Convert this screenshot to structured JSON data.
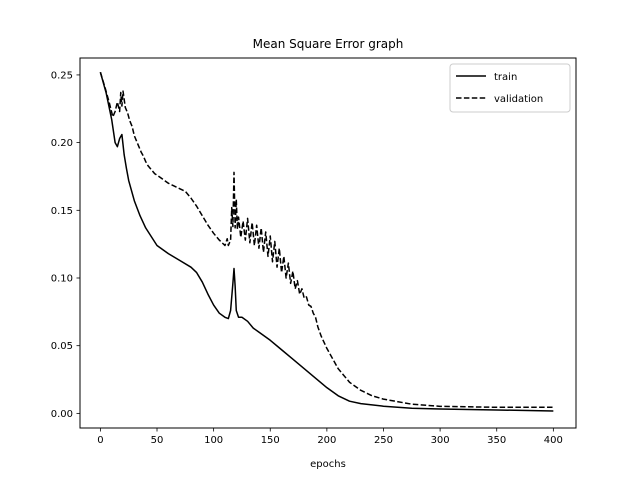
{
  "chart_data": {
    "type": "line",
    "title": "Mean Square Error graph",
    "xlabel": "epochs",
    "ylabel": "",
    "xlim": [
      -18,
      420
    ],
    "ylim": [
      -0.0108,
      0.2625
    ],
    "xticks": [
      0,
      50,
      100,
      150,
      200,
      250,
      300,
      350,
      400
    ],
    "xtick_labels": [
      "0",
      "50",
      "100",
      "150",
      "200",
      "250",
      "300",
      "350",
      "400"
    ],
    "yticks": [
      0.0,
      0.05,
      0.1,
      0.15,
      0.2,
      0.25
    ],
    "ytick_labels": [
      "0.00",
      "0.05",
      "0.10",
      "0.15",
      "0.20",
      "0.25"
    ],
    "grid": false,
    "legend": {
      "position": "top-right",
      "entries": [
        "train",
        "validation"
      ]
    },
    "series": [
      {
        "name": "train",
        "style": "solid",
        "color": "#000000",
        "x": [
          0,
          5,
          10,
          13,
          15,
          17,
          19,
          21,
          23,
          25,
          30,
          35,
          40,
          50,
          60,
          70,
          80,
          85,
          90,
          95,
          100,
          105,
          110,
          113,
          115,
          117,
          118,
          119,
          120,
          122,
          125,
          130,
          135,
          140,
          150,
          160,
          170,
          180,
          190,
          200,
          210,
          220,
          230,
          250,
          275,
          300,
          350,
          400
        ],
        "y": [
          0.252,
          0.237,
          0.217,
          0.2,
          0.197,
          0.203,
          0.206,
          0.191,
          0.181,
          0.172,
          0.157,
          0.146,
          0.137,
          0.124,
          0.118,
          0.113,
          0.108,
          0.104,
          0.097,
          0.088,
          0.08,
          0.074,
          0.071,
          0.07,
          0.076,
          0.096,
          0.107,
          0.094,
          0.076,
          0.071,
          0.071,
          0.068,
          0.063,
          0.06,
          0.054,
          0.047,
          0.04,
          0.033,
          0.026,
          0.019,
          0.013,
          0.009,
          0.0072,
          0.0053,
          0.0038,
          0.0032,
          0.0025,
          0.0018
        ]
      },
      {
        "name": "validation",
        "style": "dashed",
        "color": "#000000",
        "x": [
          0,
          4,
          8,
          11,
          13,
          15,
          17,
          18,
          19,
          20,
          22,
          24,
          26,
          28,
          30,
          32,
          34,
          36,
          38,
          40,
          42,
          44,
          46,
          48,
          50,
          55,
          60,
          65,
          70,
          75,
          80,
          85,
          90,
          95,
          100,
          105,
          110,
          112,
          113,
          114,
          115,
          116,
          117,
          118,
          119,
          120,
          121,
          122,
          124,
          126,
          128,
          130,
          132,
          134,
          136,
          138,
          140,
          142,
          144,
          146,
          148,
          150,
          152,
          154,
          156,
          158,
          160,
          162,
          164,
          166,
          168,
          170,
          172,
          174,
          176,
          178,
          180,
          182,
          184,
          186,
          188,
          190,
          192,
          195,
          200,
          210,
          220,
          230,
          240,
          250,
          275,
          300,
          350,
          400
        ],
        "y": [
          0.252,
          0.241,
          0.229,
          0.219,
          0.223,
          0.23,
          0.223,
          0.237,
          0.227,
          0.238,
          0.226,
          0.222,
          0.216,
          0.212,
          0.205,
          0.201,
          0.197,
          0.193,
          0.19,
          0.186,
          0.183,
          0.181,
          0.179,
          0.177,
          0.176,
          0.173,
          0.17,
          0.168,
          0.166,
          0.164,
          0.159,
          0.153,
          0.146,
          0.139,
          0.133,
          0.128,
          0.124,
          0.129,
          0.124,
          0.126,
          0.128,
          0.152,
          0.138,
          0.178,
          0.137,
          0.158,
          0.136,
          0.145,
          0.13,
          0.142,
          0.128,
          0.144,
          0.126,
          0.141,
          0.124,
          0.139,
          0.122,
          0.137,
          0.119,
          0.134,
          0.116,
          0.131,
          0.112,
          0.127,
          0.108,
          0.122,
          0.104,
          0.116,
          0.1,
          0.111,
          0.096,
          0.105,
          0.092,
          0.098,
          0.088,
          0.092,
          0.085,
          0.086,
          0.08,
          0.079,
          0.074,
          0.071,
          0.064,
          0.057,
          0.048,
          0.033,
          0.023,
          0.017,
          0.013,
          0.0105,
          0.0068,
          0.0052,
          0.0045,
          0.0045
        ]
      }
    ]
  }
}
